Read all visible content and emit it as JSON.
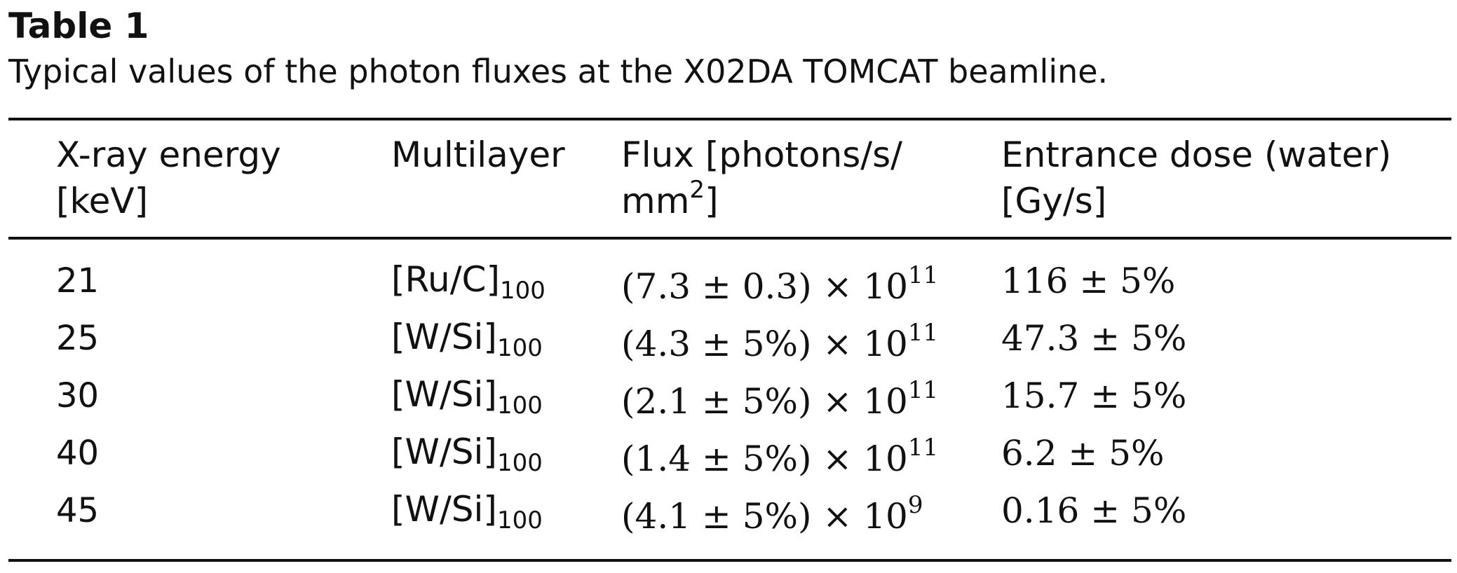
{
  "table": {
    "label": "Table 1",
    "caption": "Typical values of the photon fluxes at the X02DA TOMCAT beamline.",
    "headers": {
      "energy_line1": "X-ray energy",
      "energy_line2": "[keV]",
      "multilayer": "Multilayer",
      "flux_line1": "Flux [photons/s/",
      "flux_line2_base": "mm",
      "flux_line2_sup": "2",
      "flux_line2_tail": "]",
      "dose_line1": "Entrance dose (water)",
      "dose_line2": "[Gy/s]"
    },
    "rows": [
      {
        "energy": "21",
        "multilayer": "[Ru/C]",
        "multilayer_sub": "100",
        "flux": "(7.3 ± 0.3) × 10",
        "flux_exp": "11",
        "dose": "116 ± 5%"
      },
      {
        "energy": "25",
        "multilayer": "[W/Si]",
        "multilayer_sub": "100",
        "flux": "(4.3 ± 5%) × 10",
        "flux_exp": "11",
        "dose": "47.3 ± 5%"
      },
      {
        "energy": "30",
        "multilayer": "[W/Si]",
        "multilayer_sub": "100",
        "flux": "(2.1 ± 5%) × 10",
        "flux_exp": "11",
        "dose": "15.7 ± 5%"
      },
      {
        "energy": "40",
        "multilayer": "[W/Si]",
        "multilayer_sub": "100",
        "flux": "(1.4 ± 5%) × 10",
        "flux_exp": "11",
        "dose": "6.2 ± 5%"
      },
      {
        "energy": "45",
        "multilayer": "[W/Si]",
        "multilayer_sub": "100",
        "flux": "(4.1 ± 5%) × 10",
        "flux_exp": "9",
        "dose": "0.16 ± 5%"
      }
    ]
  }
}
